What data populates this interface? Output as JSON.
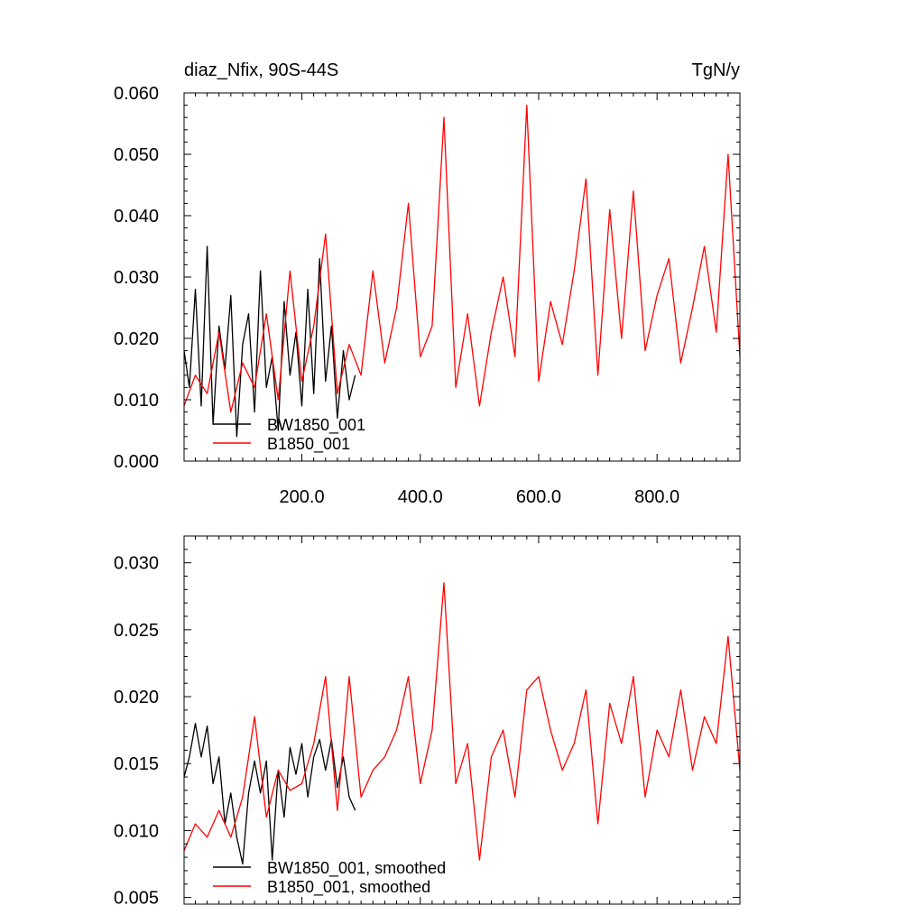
{
  "header": {
    "left_title": "diaz_Nfix, 90S-44S",
    "right_title": "TgN/y"
  },
  "colors": {
    "BW1850_001": "#000000",
    "B1850_001": "#ff0000",
    "axis": "#000000"
  },
  "chart_data": [
    {
      "type": "line",
      "title": "",
      "xlabel": "",
      "ylabel": "",
      "xlim": [
        1,
        940
      ],
      "ylim": [
        0.0,
        0.06
      ],
      "y_ticks": [
        0.0,
        0.01,
        0.02,
        0.03,
        0.04,
        0.05,
        0.06
      ],
      "y_tick_labels": [
        "0.000",
        "0.010",
        "0.020",
        "0.030",
        "0.040",
        "0.050",
        "0.060"
      ],
      "x_ticks": [
        200,
        400,
        600,
        800
      ],
      "x_tick_labels": [
        "200.0",
        "400.0",
        "600.0",
        "800.0"
      ],
      "legend": "bottom-left",
      "grid": false,
      "series": [
        {
          "name": "BW1850_001",
          "color": "#000000",
          "x_range": [
            1,
            290
          ],
          "x": [
            1,
            10,
            20,
            30,
            40,
            50,
            60,
            70,
            80,
            90,
            100,
            110,
            120,
            130,
            140,
            150,
            160,
            170,
            180,
            190,
            200,
            210,
            220,
            230,
            240,
            250,
            260,
            270,
            280,
            290
          ],
          "y": [
            0.018,
            0.012,
            0.028,
            0.009,
            0.035,
            0.006,
            0.022,
            0.015,
            0.027,
            0.004,
            0.019,
            0.024,
            0.008,
            0.031,
            0.012,
            0.017,
            0.005,
            0.026,
            0.014,
            0.021,
            0.009,
            0.028,
            0.011,
            0.033,
            0.013,
            0.022,
            0.007,
            0.018,
            0.01,
            0.014
          ]
        },
        {
          "name": "B1850_001",
          "color": "#ff0000",
          "x_range": [
            1,
            940
          ],
          "x": [
            1,
            20,
            40,
            60,
            80,
            100,
            120,
            140,
            160,
            180,
            200,
            220,
            240,
            260,
            280,
            300,
            320,
            340,
            360,
            380,
            400,
            420,
            440,
            460,
            480,
            500,
            520,
            540,
            560,
            580,
            600,
            620,
            640,
            660,
            680,
            700,
            720,
            740,
            760,
            780,
            800,
            820,
            840,
            860,
            880,
            900,
            920,
            940
          ],
          "y": [
            0.009,
            0.014,
            0.011,
            0.021,
            0.008,
            0.016,
            0.012,
            0.024,
            0.01,
            0.031,
            0.013,
            0.022,
            0.037,
            0.011,
            0.019,
            0.014,
            0.031,
            0.016,
            0.025,
            0.042,
            0.017,
            0.022,
            0.056,
            0.012,
            0.024,
            0.009,
            0.021,
            0.03,
            0.017,
            0.058,
            0.013,
            0.026,
            0.019,
            0.031,
            0.046,
            0.014,
            0.041,
            0.02,
            0.044,
            0.018,
            0.027,
            0.033,
            0.016,
            0.025,
            0.035,
            0.021,
            0.05,
            0.017
          ]
        }
      ]
    },
    {
      "type": "line",
      "title": "",
      "xlabel": "",
      "ylabel": "",
      "xlim": [
        1,
        940
      ],
      "ylim": [
        0.0045,
        0.032
      ],
      "y_ticks": [
        0.005,
        0.01,
        0.015,
        0.02,
        0.025,
        0.03
      ],
      "y_tick_labels": [
        "0.005",
        "0.010",
        "0.015",
        "0.020",
        "0.025",
        "0.030"
      ],
      "x_ticks": [
        200,
        400,
        600,
        800
      ],
      "x_tick_labels": [],
      "legend": "bottom-left",
      "grid": false,
      "series": [
        {
          "name": "BW1850_001, smoothed",
          "color": "#000000",
          "x": [
            1,
            10,
            20,
            30,
            40,
            50,
            60,
            70,
            80,
            90,
            100,
            110,
            120,
            130,
            140,
            150,
            160,
            170,
            180,
            190,
            200,
            210,
            220,
            230,
            240,
            250,
            260,
            270,
            280,
            290
          ],
          "y": [
            0.014,
            0.0155,
            0.018,
            0.0155,
            0.0178,
            0.0135,
            0.0155,
            0.0105,
            0.0128,
            0.0095,
            0.0075,
            0.0128,
            0.0152,
            0.0128,
            0.0152,
            0.0078,
            0.0145,
            0.011,
            0.0162,
            0.0142,
            0.0165,
            0.0125,
            0.0155,
            0.0168,
            0.0145,
            0.0168,
            0.0132,
            0.0155,
            0.0125,
            0.0115
          ]
        },
        {
          "name": "B1850_001, smoothed",
          "color": "#ff0000",
          "x": [
            1,
            20,
            40,
            60,
            80,
            100,
            120,
            140,
            160,
            180,
            200,
            220,
            240,
            260,
            280,
            300,
            320,
            340,
            360,
            380,
            400,
            420,
            440,
            460,
            480,
            500,
            520,
            540,
            560,
            580,
            600,
            620,
            640,
            660,
            680,
            700,
            720,
            740,
            760,
            780,
            800,
            820,
            840,
            860,
            880,
            900,
            920,
            940
          ],
          "y": [
            0.0085,
            0.0105,
            0.0095,
            0.0115,
            0.0095,
            0.0125,
            0.0185,
            0.011,
            0.0145,
            0.013,
            0.0135,
            0.0165,
            0.0215,
            0.0115,
            0.0215,
            0.0125,
            0.0145,
            0.0155,
            0.0175,
            0.0215,
            0.0135,
            0.0175,
            0.0285,
            0.0135,
            0.0165,
            0.0078,
            0.0155,
            0.0175,
            0.0125,
            0.0205,
            0.0215,
            0.0175,
            0.0145,
            0.0165,
            0.0205,
            0.0105,
            0.0195,
            0.0165,
            0.0215,
            0.0125,
            0.0175,
            0.0155,
            0.0205,
            0.0145,
            0.0185,
            0.0165,
            0.0245,
            0.0145
          ]
        }
      ]
    }
  ]
}
